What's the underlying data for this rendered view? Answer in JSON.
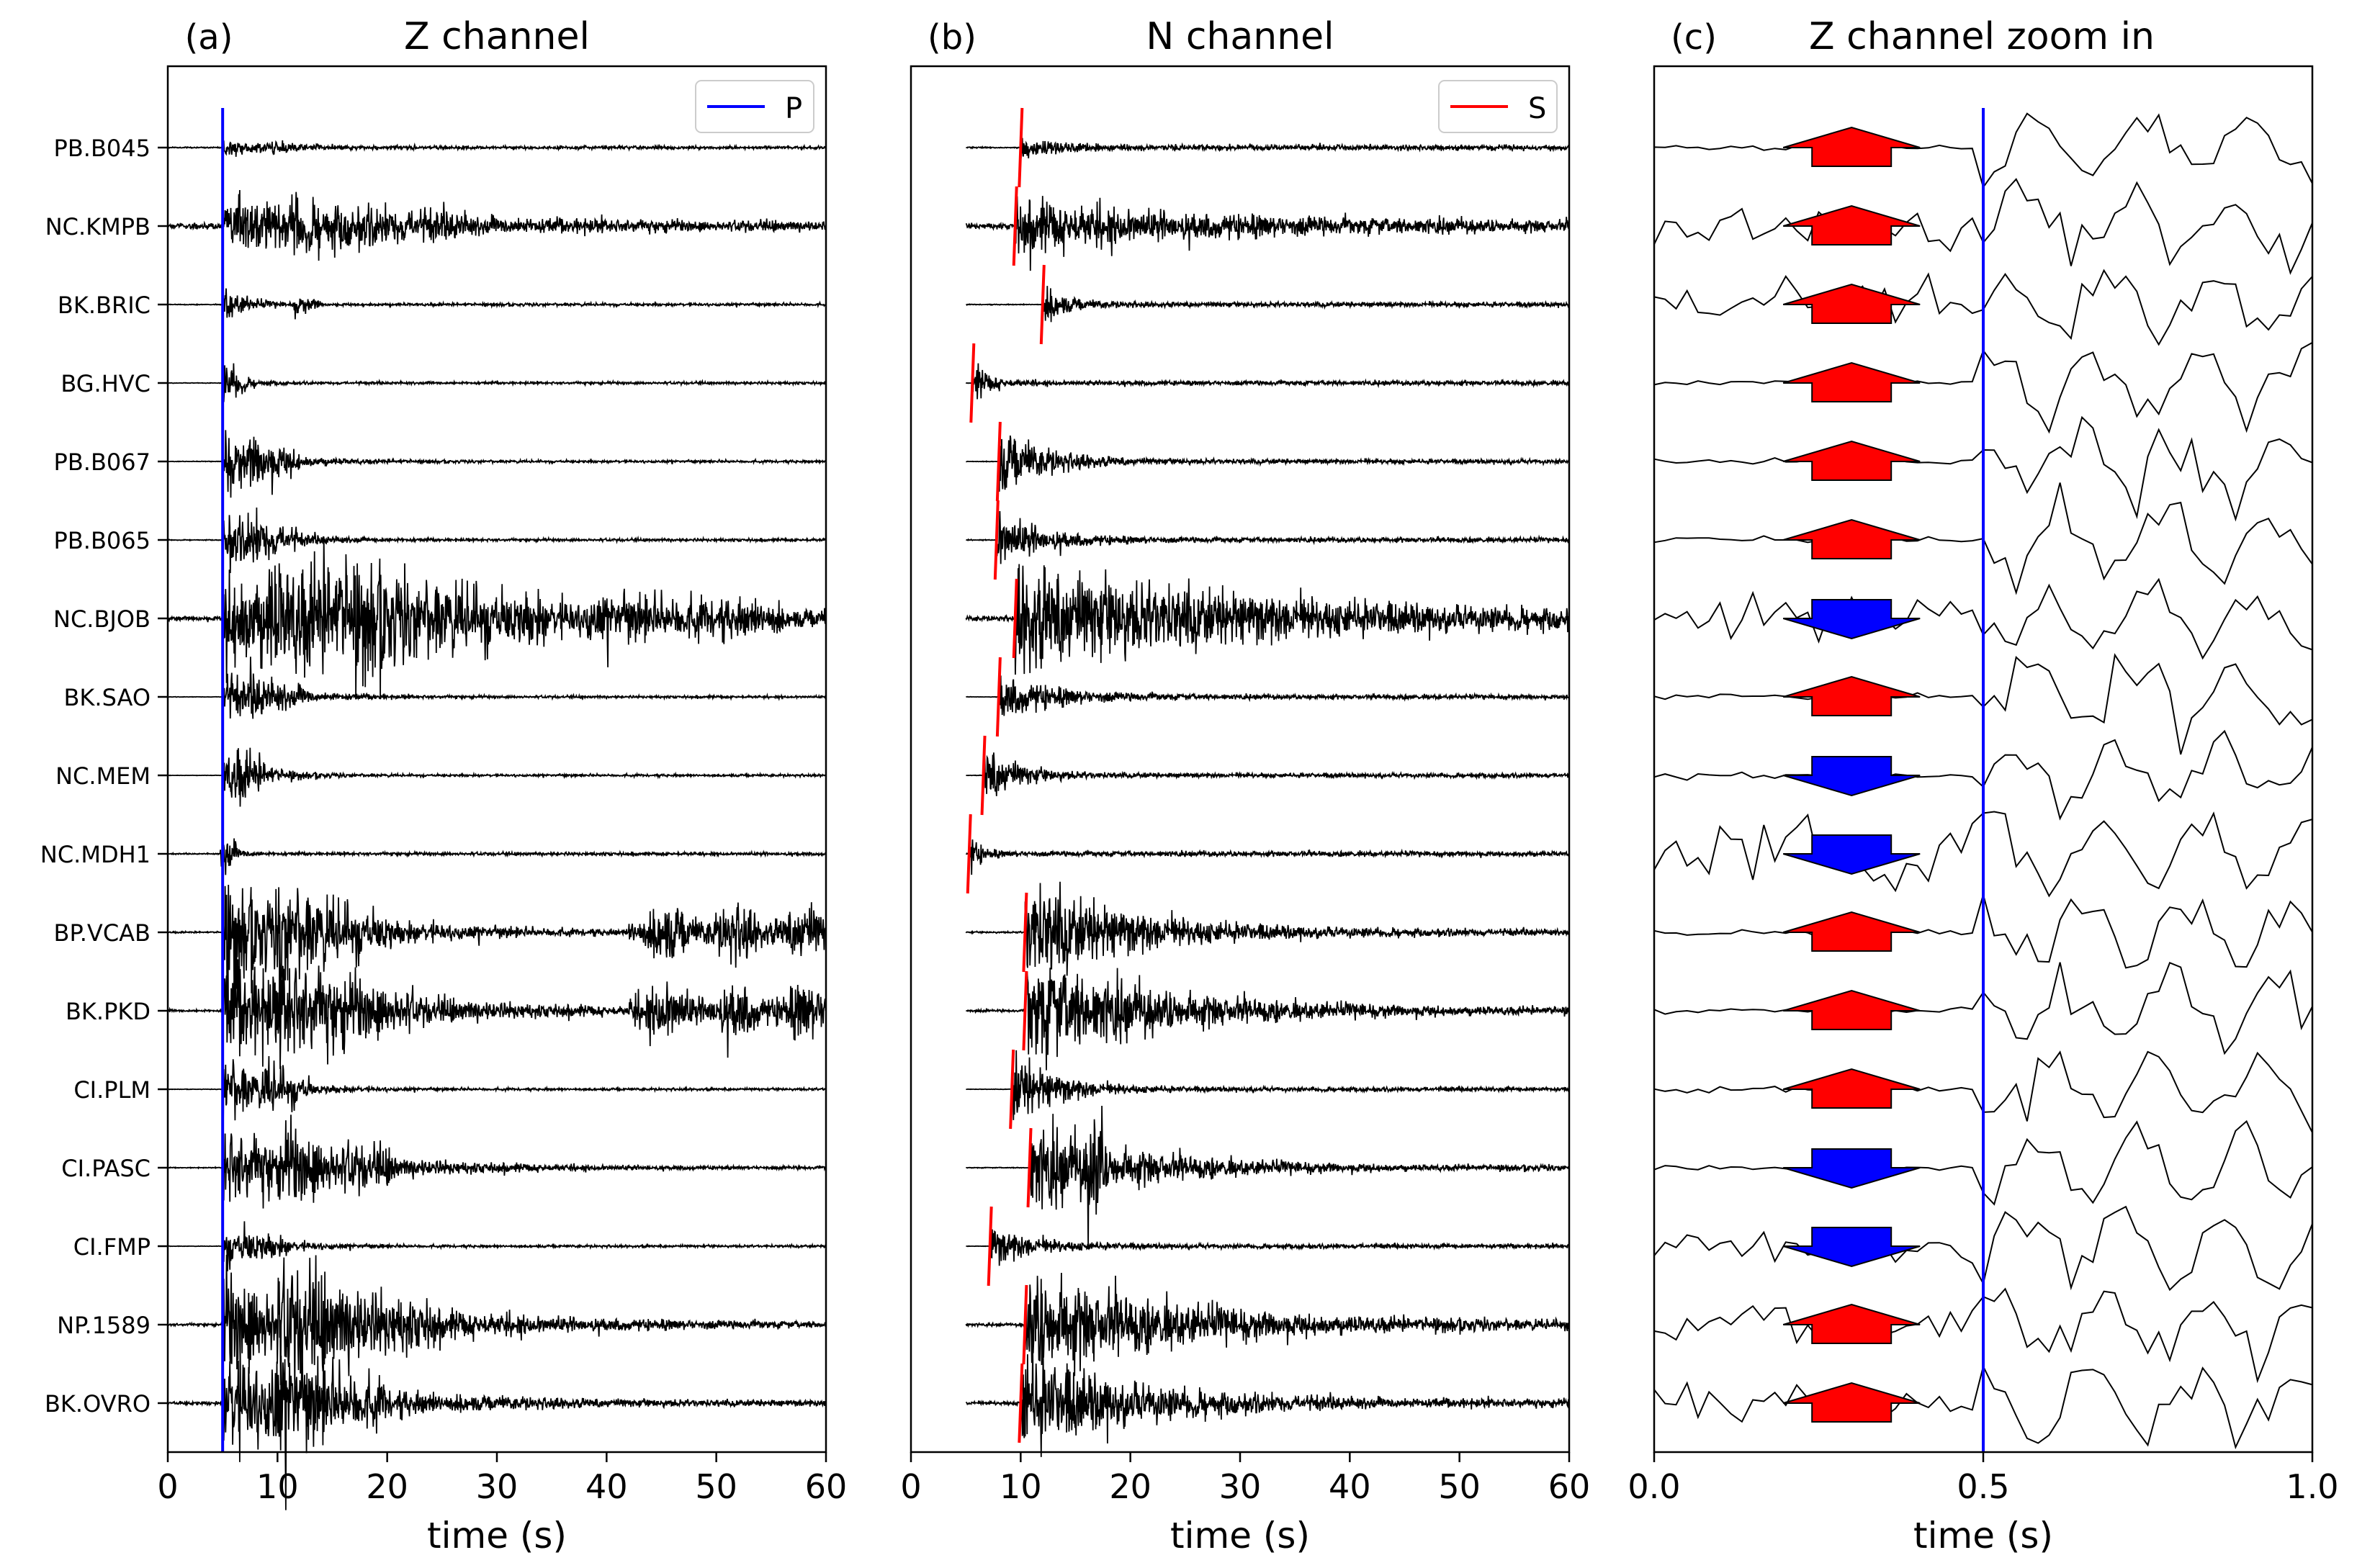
{
  "figure": {
    "panel_a_letter": "(a)",
    "panel_a_title": "Z channel",
    "panel_b_letter": "(b)",
    "panel_b_title": "N channel",
    "panel_c_letter": "(c)",
    "panel_c_title": "Z channel zoom in",
    "xlabel": "time (s)",
    "legend_p": "P",
    "legend_s": "S"
  },
  "colors": {
    "p_pick": "#0000ff",
    "s_pick": "#ff0000",
    "up": "#ff0000",
    "down": "#0000ff",
    "trace": "#000000"
  },
  "chart_data": [
    {
      "type": "line",
      "title": "Z channel",
      "panel": "(a)",
      "xlabel": "time (s)",
      "xlim": [
        0,
        60
      ],
      "xticks": [
        0,
        10,
        20,
        30,
        40,
        50,
        60
      ],
      "stations": [
        "PB.B045",
        "NC.KMPB",
        "BK.BRIC",
        "BG.HVC",
        "PB.B067",
        "PB.B065",
        "NC.BJOB",
        "BK.SAO",
        "NC.MEM",
        "NC.MDH1",
        "BP.VCAB",
        "BK.PKD",
        "CI.PLM",
        "CI.PASC",
        "CI.FMP",
        "NP.1589",
        "BK.OVRO"
      ],
      "p_pick_time": 5.0,
      "legend": [
        "P"
      ]
    },
    {
      "type": "line",
      "title": "N channel",
      "panel": "(b)",
      "xlabel": "time (s)",
      "xlim": [
        0,
        60
      ],
      "xticks": [
        0,
        10,
        20,
        30,
        40,
        50,
        60
      ],
      "stations": [
        "PB.B045",
        "NC.KMPB",
        "BK.BRIC",
        "BG.HVC",
        "PB.B067",
        "PB.B065",
        "NC.BJOB",
        "BK.SAO",
        "NC.MEM",
        "NC.MDH1",
        "BP.VCAB",
        "BK.PKD",
        "CI.PLM",
        "CI.PASC",
        "CI.FMP",
        "NP.1589",
        "BK.OVRO"
      ],
      "s_pick_times": [
        10.0,
        9.5,
        12.0,
        5.6,
        8.0,
        7.8,
        9.5,
        8.0,
        6.6,
        5.3,
        10.4,
        10.4,
        9.2,
        10.8,
        7.2,
        10.4,
        10.0
      ],
      "legend": [
        "S"
      ]
    },
    {
      "type": "line",
      "title": "Z channel zoom in",
      "panel": "(c)",
      "xlabel": "time (s)",
      "xlim": [
        0.0,
        1.0
      ],
      "xticks": [
        "0.0",
        "0.5",
        "1.0"
      ],
      "p_pick_time": 0.5,
      "polarity_marker_time": 0.3,
      "polarities": [
        "up",
        "up",
        "up",
        "up",
        "up",
        "up",
        "down",
        "up",
        "down",
        "down",
        "up",
        "up",
        "up",
        "down",
        "down",
        "up",
        "up"
      ]
    }
  ]
}
